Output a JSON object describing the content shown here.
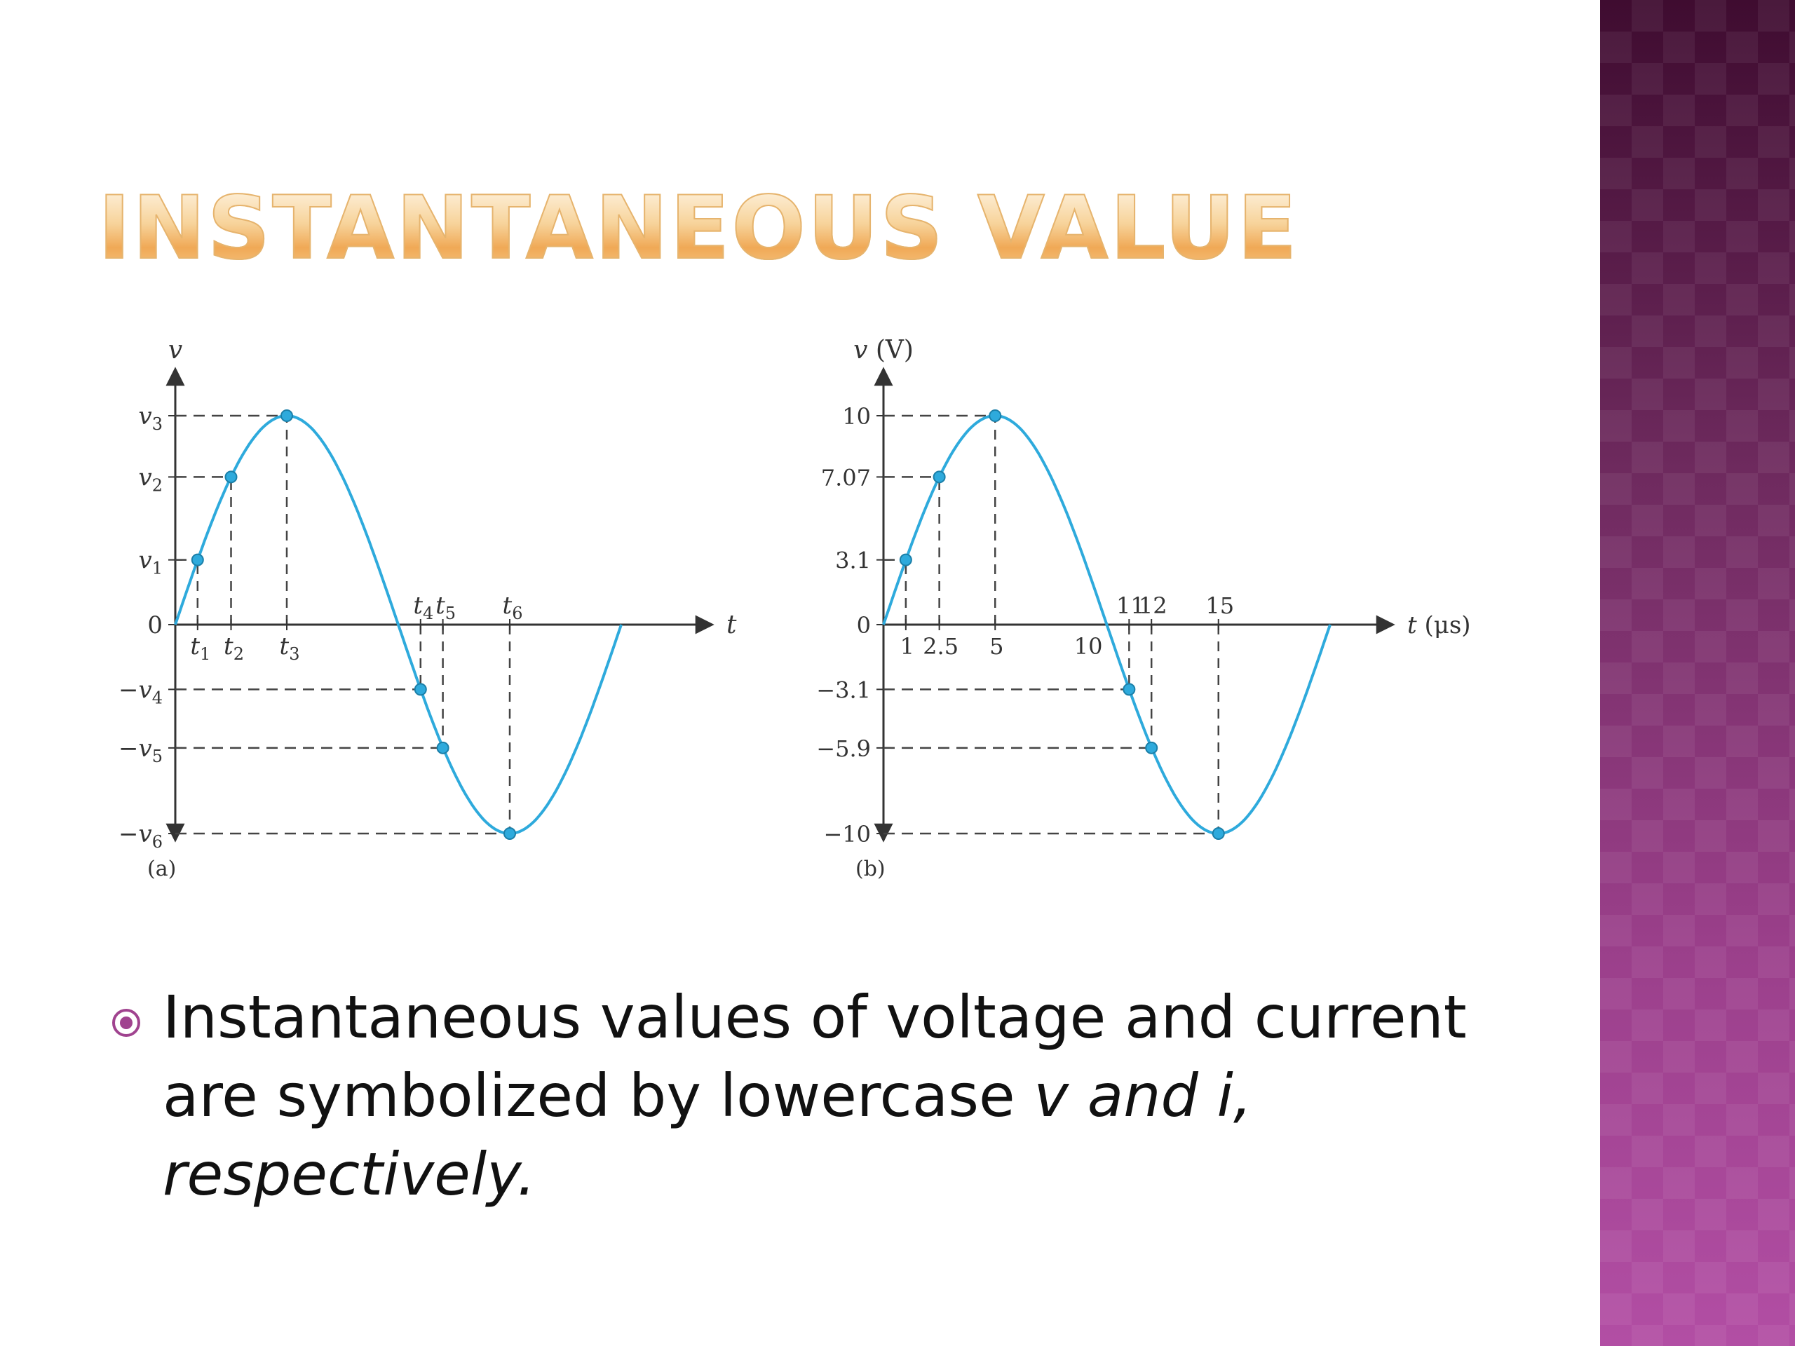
{
  "slide": {
    "title": "INSTANTANEOUS VALUE",
    "bullet": {
      "text_plain": "Instantaneous values of voltage and current are symbolized by lowercase",
      "text_italic_1": "v and i,",
      "text_italic_2": "respectively."
    }
  },
  "colors": {
    "curve": "#2eaadc",
    "title_gold": "#f0a956",
    "sidebar_top": "#3f0c30",
    "sidebar_bottom": "#b24ea4",
    "bullet_icon": "#a0438f"
  },
  "chart_data": [
    {
      "type": "line",
      "panel_label": "(a)",
      "ylabel": "v",
      "xlabel": "t",
      "ylim": [
        -10,
        10
      ],
      "xlim": [
        0,
        20
      ],
      "series": [
        {
          "function": "sin",
          "amplitude": 10,
          "period": 20
        }
      ],
      "x": [
        2.5,
        5,
        10,
        15,
        20
      ],
      "y_ticks": [
        {
          "value": 10,
          "label": "v3"
        },
        {
          "value": 7.07,
          "label": "v2"
        },
        {
          "value": 3.1,
          "label": "v1"
        },
        {
          "value": 0,
          "label": "0"
        },
        {
          "value": -3.1,
          "label": "−v4"
        },
        {
          "value": -5.9,
          "label": "−v5"
        },
        {
          "value": -10,
          "label": "−v6"
        }
      ],
      "marked_points": [
        {
          "x": 1,
          "y": 3.1,
          "t_label": "t1",
          "label_pos": "below"
        },
        {
          "x": 2.5,
          "y": 7.07,
          "t_label": "t2",
          "label_pos": "below"
        },
        {
          "x": 5,
          "y": 10,
          "t_label": "t3",
          "label_pos": "below"
        },
        {
          "x": 11,
          "y": -3.1,
          "t_label": "t4",
          "label_pos": "above"
        },
        {
          "x": 12,
          "y": -5.9,
          "t_label": "t5",
          "label_pos": "above"
        },
        {
          "x": 15,
          "y": -10,
          "t_label": "t6",
          "label_pos": "above"
        }
      ]
    },
    {
      "type": "line",
      "panel_label": "(b)",
      "ylabel": "v (V)",
      "xlabel": "t (μs)",
      "ylim": [
        -10,
        10
      ],
      "xlim": [
        0,
        20
      ],
      "series": [
        {
          "function": "sin",
          "amplitude": 10,
          "period": 20
        }
      ],
      "x": [
        2.5,
        5,
        10,
        15,
        20
      ],
      "y_ticks": [
        {
          "value": 10,
          "label": "10"
        },
        {
          "value": 7.07,
          "label": "7.07"
        },
        {
          "value": 3.1,
          "label": "3.1"
        },
        {
          "value": 0,
          "label": "0"
        },
        {
          "value": -3.1,
          "label": "−3.1"
        },
        {
          "value": -5.9,
          "label": "−5.9"
        },
        {
          "value": -10,
          "label": "−10"
        }
      ],
      "x_tick_labels": [
        {
          "value": 10,
          "label": "10",
          "label_pos": "below-left"
        }
      ],
      "marked_points": [
        {
          "x": 1,
          "y": 3.1,
          "t_label": "1",
          "label_pos": "below"
        },
        {
          "x": 2.5,
          "y": 7.07,
          "t_label": "2.5",
          "label_pos": "below"
        },
        {
          "x": 5,
          "y": 10,
          "t_label": "5",
          "label_pos": "below"
        },
        {
          "x": 11,
          "y": -3.1,
          "t_label": "11",
          "label_pos": "above"
        },
        {
          "x": 12,
          "y": -5.9,
          "t_label": "12",
          "label_pos": "above"
        },
        {
          "x": 15,
          "y": -10,
          "t_label": "15",
          "label_pos": "above"
        }
      ]
    }
  ]
}
